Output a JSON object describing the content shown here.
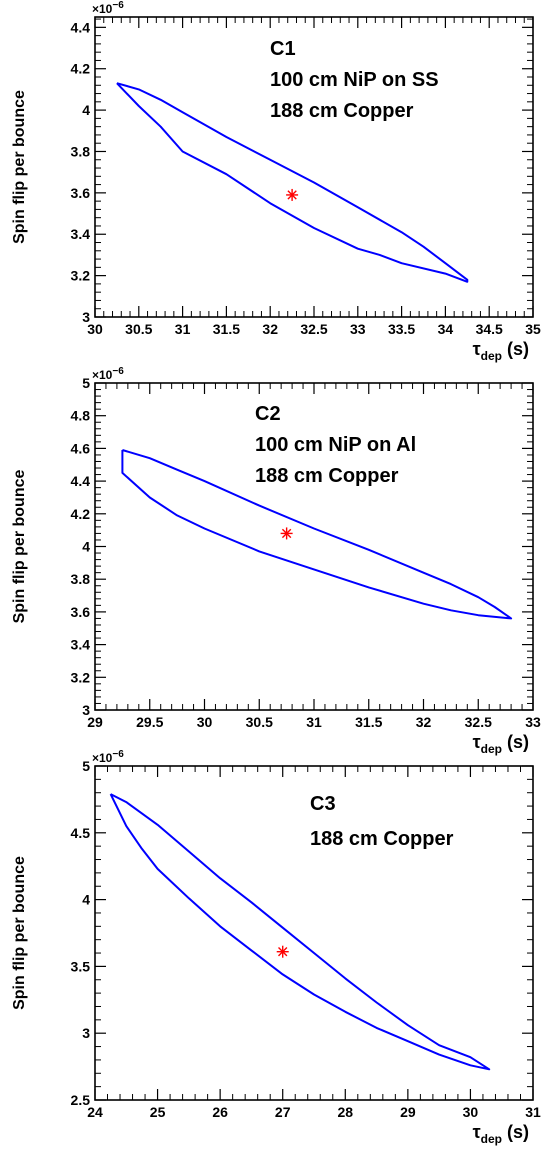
{
  "chart_data": [
    {
      "type": "line",
      "panel": "C1",
      "ylabel": "Spin flip per bounce",
      "xlabel_symbol": "τ",
      "xlabel_subscript": "dep",
      "xlabel_unit": "(s)",
      "y_multiplier_base": "×10",
      "y_multiplier_exp": "−6",
      "xlim": [
        30,
        35
      ],
      "ylim": [
        3.0,
        4.45
      ],
      "x_ticks": [
        30,
        30.5,
        31,
        31.5,
        32,
        32.5,
        33,
        33.5,
        34,
        34.5,
        35
      ],
      "x_tick_labels": [
        "30",
        "30.5",
        "31",
        "31.5",
        "32",
        "32.5",
        "33",
        "33.5",
        "34",
        "34.5",
        "35"
      ],
      "y_ticks": [
        3.0,
        3.2,
        3.4,
        3.6,
        3.8,
        4.0,
        4.2,
        4.4
      ],
      "y_tick_labels": [
        "3",
        "3.2",
        "3.4",
        "3.6",
        "3.8",
        "4",
        "4.2",
        "4.4"
      ],
      "annotations": [
        "C1",
        "100 cm NiP on SS",
        "188 cm Copper"
      ],
      "series": [
        {
          "role": "contour",
          "color": "#0000ff",
          "x": [
            30.25,
            30.5,
            30.75,
            31.0,
            31.5,
            32.0,
            32.5,
            33.0,
            33.5,
            33.75,
            34.0,
            34.25,
            34.25,
            34.0,
            33.5,
            33.25,
            33.0,
            32.5,
            32.0,
            31.5,
            31.0,
            30.75,
            30.5,
            30.25
          ],
          "y": [
            4.13,
            4.1,
            4.05,
            3.99,
            3.87,
            3.76,
            3.65,
            3.53,
            3.41,
            3.34,
            3.26,
            3.18,
            3.17,
            3.21,
            3.26,
            3.3,
            3.33,
            3.43,
            3.55,
            3.69,
            3.8,
            3.92,
            4.02,
            4.13
          ]
        }
      ],
      "best_fit": {
        "marker": "asterisk",
        "color": "#ff0000",
        "x": 32.25,
        "y": 3.59
      }
    },
    {
      "type": "line",
      "panel": "C2",
      "ylabel": "Spin flip per bounce",
      "xlabel_symbol": "τ",
      "xlabel_subscript": "dep",
      "xlabel_unit": "(s)",
      "y_multiplier_base": "×10",
      "y_multiplier_exp": "−6",
      "xlim": [
        29,
        33
      ],
      "ylim": [
        3.0,
        5.0
      ],
      "x_ticks": [
        29,
        29.5,
        30,
        30.5,
        31,
        31.5,
        32,
        32.5,
        33
      ],
      "x_tick_labels": [
        "29",
        "29.5",
        "30",
        "30.5",
        "31",
        "31.5",
        "32",
        "32.5",
        "33"
      ],
      "y_ticks": [
        3.0,
        3.2,
        3.4,
        3.6,
        3.8,
        4.0,
        4.2,
        4.4,
        4.6,
        4.8,
        5.0
      ],
      "y_tick_labels": [
        "3",
        "3.2",
        "3.4",
        "3.6",
        "3.8",
        "4",
        "4.2",
        "4.4",
        "4.6",
        "4.8",
        "5"
      ],
      "annotations": [
        "C2",
        "100 cm NiP on Al",
        "188 cm Copper"
      ],
      "series": [
        {
          "role": "contour",
          "color": "#0000ff",
          "x": [
            29.25,
            29.5,
            29.75,
            30.0,
            30.5,
            31.0,
            31.5,
            32.0,
            32.25,
            32.5,
            32.65,
            32.8,
            32.5,
            32.25,
            32.0,
            31.5,
            31.0,
            30.5,
            30.0,
            29.75,
            29.5,
            29.25,
            29.25,
            29.25
          ],
          "y": [
            4.59,
            4.54,
            4.47,
            4.4,
            4.25,
            4.11,
            3.98,
            3.84,
            3.77,
            3.69,
            3.63,
            3.56,
            3.58,
            3.61,
            3.65,
            3.75,
            3.86,
            3.97,
            4.11,
            4.19,
            4.3,
            4.45,
            4.5,
            4.59
          ]
        }
      ],
      "best_fit": {
        "marker": "asterisk",
        "color": "#ff0000",
        "x": 30.75,
        "y": 4.08
      }
    },
    {
      "type": "line",
      "panel": "C3",
      "ylabel": "Spin flip per bounce",
      "xlabel_symbol": "τ",
      "xlabel_subscript": "dep",
      "xlabel_unit": "(s)",
      "y_multiplier_base": "×10",
      "y_multiplier_exp": "−6",
      "xlim": [
        24,
        31
      ],
      "ylim": [
        2.5,
        5.0
      ],
      "x_ticks": [
        24,
        25,
        26,
        27,
        28,
        29,
        30,
        31
      ],
      "x_tick_labels": [
        "24",
        "25",
        "26",
        "27",
        "28",
        "29",
        "30",
        "31"
      ],
      "y_ticks": [
        2.5,
        3.0,
        3.5,
        4.0,
        4.5,
        5.0
      ],
      "y_tick_labels": [
        "2.5",
        "3",
        "3.5",
        "4",
        "4.5",
        "5"
      ],
      "annotations": [
        "C3",
        "188 cm Copper"
      ],
      "series": [
        {
          "role": "contour",
          "color": "#0000ff",
          "x": [
            24.25,
            24.5,
            25.0,
            25.5,
            26.0,
            26.5,
            27.0,
            27.5,
            28.0,
            28.5,
            29.0,
            29.5,
            30.0,
            30.3,
            30.0,
            29.5,
            29.0,
            28.5,
            28.0,
            27.5,
            27.0,
            26.5,
            26.0,
            25.5,
            25.0,
            24.75,
            24.5,
            24.25
          ],
          "y": [
            4.79,
            4.73,
            4.56,
            4.36,
            4.16,
            3.98,
            3.79,
            3.6,
            3.41,
            3.23,
            3.06,
            2.91,
            2.82,
            2.73,
            2.76,
            2.84,
            2.94,
            3.04,
            3.16,
            3.29,
            3.44,
            3.62,
            3.8,
            4.01,
            4.23,
            4.38,
            4.55,
            4.79
          ]
        }
      ],
      "best_fit": {
        "marker": "asterisk",
        "color": "#ff0000",
        "x": 27.0,
        "y": 3.61
      }
    }
  ]
}
